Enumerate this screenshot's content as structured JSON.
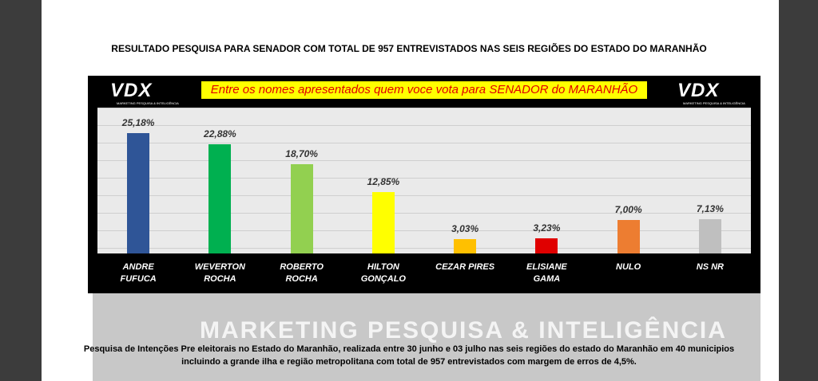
{
  "header": {
    "title": "RESULTADO PESQUISA PARA SENADOR COM TOTAL DE 957 ENTREVISTADOS NAS SEIS REGIÕES DO ESTADO DO MARANHÃO"
  },
  "logo": {
    "brand": "VDX",
    "tagline": "MARKETING PESQUISA & INTELIGÊNCIA"
  },
  "chart_data": {
    "type": "bar",
    "subtitle": "Entre os nomes apresentados quem voce vota para SENADOR do MARANHÃO",
    "categories": [
      "ANDRE FUFUCA",
      "WEVERTON ROCHA",
      "ROBERTO ROCHA",
      "HILTON GONÇALO",
      "CEZAR PIRES",
      "ELISIANE GAMA",
      "NULO",
      "NS NR"
    ],
    "values": [
      25.18,
      22.88,
      18.7,
      12.85,
      3.03,
      3.23,
      7.0,
      7.13
    ],
    "value_labels": [
      "25,18%",
      "22,88%",
      "18,70%",
      "12,85%",
      "3,03%",
      "3,23%",
      "7,00%",
      "7,13%"
    ],
    "colors": [
      "#2f5597",
      "#00b050",
      "#92d050",
      "#ffff00",
      "#ffc000",
      "#e00000",
      "#ed7d31",
      "#bfbfbf"
    ],
    "ylim": [
      0,
      30
    ],
    "grid": true
  },
  "watermark": "MARKETING PESQUISA & INTELIGÊNCIA",
  "footer": {
    "lines": [
      "Pesquisa de Intenções Pre eleitorais no Estado do Maranhão, realizada entre 30 junho e 03 julho nas seis regiões do estado do Maranhão em 40 municipios",
      "incluindo a grande ilha e região metropolitana com total de 957 entrevistados com margem de erros de 4,5%."
    ]
  }
}
